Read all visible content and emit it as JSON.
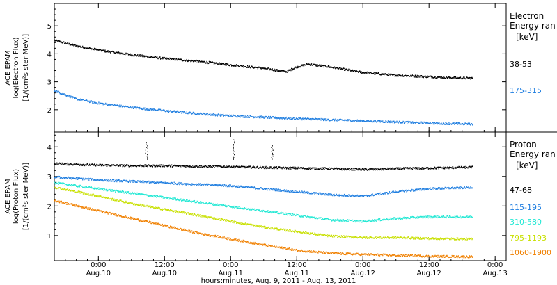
{
  "footer": {
    "xlabel": "hours:minutes, Aug.  9, 2011 - Aug. 13, 2011"
  },
  "colors": {
    "black": "#000000",
    "blue": "#1f7ee0",
    "cyan": "#22e8d4",
    "yellow": "#c8e000",
    "orange": "#f08000"
  },
  "chart_data": [
    {
      "type": "scatter",
      "ylabel": [
        "ACE EPAM",
        "log(Electron Flux)",
        "[1/(cm²s ster MeV)]"
      ],
      "ylim": [
        1.2,
        5.8
      ],
      "yticks": [
        "2",
        "3",
        "4",
        "5"
      ],
      "xlim": [
        "2011-08-09 16:00",
        "2011-08-13 02:00"
      ],
      "xticks": [
        {
          "time": "0:00",
          "date": "Aug.10"
        },
        {
          "time": "12:00",
          "date": "Aug.10"
        },
        {
          "time": "0:00",
          "date": "Aug.11"
        },
        {
          "time": "12:00",
          "date": "Aug.11"
        },
        {
          "time": "0:00",
          "date": "Aug.12"
        },
        {
          "time": "12:00",
          "date": "Aug.12"
        },
        {
          "time": "0:00",
          "date": "Aug.13"
        }
      ],
      "legend_title": [
        "Electron",
        "Energy ran",
        "[keV]"
      ],
      "series": [
        {
          "name": "38-53",
          "color": "black",
          "x": [
            "2011-08-09 16:00",
            "2011-08-09 20:00",
            "2011-08-10 00:00",
            "2011-08-10 06:00",
            "2011-08-10 12:00",
            "2011-08-10 18:00",
            "2011-08-11 00:00",
            "2011-08-11 06:00",
            "2011-08-11 10:00",
            "2011-08-11 12:00",
            "2011-08-11 14:00",
            "2011-08-11 18:00",
            "2011-08-12 00:00",
            "2011-08-12 06:00",
            "2011-08-12 12:00",
            "2011-08-12 18:00",
            "2011-08-12 20:00"
          ],
          "y": [
            4.5,
            4.3,
            4.15,
            3.98,
            3.85,
            3.75,
            3.62,
            3.5,
            3.38,
            3.55,
            3.65,
            3.55,
            3.35,
            3.25,
            3.2,
            3.15,
            3.15
          ]
        },
        {
          "name": "175-315",
          "color": "blue",
          "x": [
            "2011-08-09 16:00",
            "2011-08-09 20:00",
            "2011-08-10 00:00",
            "2011-08-10 06:00",
            "2011-08-10 12:00",
            "2011-08-10 18:00",
            "2011-08-11 00:00",
            "2011-08-11 06:00",
            "2011-08-11 12:00",
            "2011-08-11 18:00",
            "2011-08-12 00:00",
            "2011-08-12 06:00",
            "2011-08-12 12:00",
            "2011-08-12 20:00"
          ],
          "y": [
            2.7,
            2.4,
            2.25,
            2.1,
            1.98,
            1.88,
            1.8,
            1.75,
            1.7,
            1.66,
            1.62,
            1.58,
            1.54,
            1.5
          ]
        }
      ]
    },
    {
      "type": "scatter",
      "ylabel": [
        "ACE EPAM",
        "log(Proton Flux)",
        "[1/(cm²s ster MeV)]"
      ],
      "ylim": [
        0.15,
        4.5
      ],
      "yticks": [
        "1",
        "2",
        "3",
        "4"
      ],
      "xlim": [
        "2011-08-09 16:00",
        "2011-08-13 02:00"
      ],
      "legend_title": [
        "Proton",
        "Energy ran",
        "[keV]"
      ],
      "series": [
        {
          "name": "47-68",
          "color": "black",
          "x": [
            "2011-08-09 16:00",
            "2011-08-10 00:00",
            "2011-08-10 06:00",
            "2011-08-10 12:00",
            "2011-08-10 18:00",
            "2011-08-11 00:00",
            "2011-08-11 06:00",
            "2011-08-11 12:00",
            "2011-08-11 18:00",
            "2011-08-12 00:00",
            "2011-08-12 06:00",
            "2011-08-12 12:00",
            "2011-08-12 20:00"
          ],
          "y": [
            3.45,
            3.4,
            3.38,
            3.38,
            3.36,
            3.35,
            3.32,
            3.3,
            3.28,
            3.25,
            3.28,
            3.3,
            3.33
          ]
        },
        {
          "name": "115-195",
          "color": "blue",
          "x": [
            "2011-08-09 16:00",
            "2011-08-10 00:00",
            "2011-08-10 06:00",
            "2011-08-10 12:00",
            "2011-08-10 18:00",
            "2011-08-11 00:00",
            "2011-08-11 06:00",
            "2011-08-11 12:00",
            "2011-08-11 18:00",
            "2011-08-12 00:00",
            "2011-08-12 06:00",
            "2011-08-12 12:00",
            "2011-08-12 20:00"
          ],
          "y": [
            3.0,
            2.9,
            2.85,
            2.8,
            2.75,
            2.7,
            2.6,
            2.5,
            2.4,
            2.35,
            2.5,
            2.6,
            2.65
          ]
        },
        {
          "name": "310-580",
          "color": "cyan",
          "x": [
            "2011-08-09 16:00",
            "2011-08-10 00:00",
            "2011-08-10 06:00",
            "2011-08-10 12:00",
            "2011-08-10 18:00",
            "2011-08-11 00:00",
            "2011-08-11 06:00",
            "2011-08-11 12:00",
            "2011-08-11 18:00",
            "2011-08-12 00:00",
            "2011-08-12 06:00",
            "2011-08-12 12:00",
            "2011-08-12 20:00"
          ],
          "y": [
            2.8,
            2.6,
            2.45,
            2.3,
            2.15,
            2.0,
            1.85,
            1.7,
            1.55,
            1.5,
            1.6,
            1.65,
            1.65
          ]
        },
        {
          "name": "795-1193",
          "color": "yellow",
          "x": [
            "2011-08-09 16:00",
            "2011-08-10 00:00",
            "2011-08-10 06:00",
            "2011-08-10 12:00",
            "2011-08-10 18:00",
            "2011-08-11 00:00",
            "2011-08-11 06:00",
            "2011-08-11 12:00",
            "2011-08-11 18:00",
            "2011-08-12 00:00",
            "2011-08-12 06:00",
            "2011-08-12 12:00",
            "2011-08-12 20:00"
          ],
          "y": [
            2.65,
            2.35,
            2.1,
            1.9,
            1.7,
            1.5,
            1.3,
            1.15,
            1.0,
            0.95,
            0.95,
            0.92,
            0.9
          ]
        },
        {
          "name": "1060-1900",
          "color": "orange",
          "x": [
            "2011-08-09 16:00",
            "2011-08-10 00:00",
            "2011-08-10 06:00",
            "2011-08-10 12:00",
            "2011-08-10 18:00",
            "2011-08-11 00:00",
            "2011-08-11 06:00",
            "2011-08-11 12:00",
            "2011-08-11 18:00",
            "2011-08-12 00:00",
            "2011-08-12 06:00",
            "2011-08-12 12:00",
            "2011-08-12 20:00"
          ],
          "y": [
            2.2,
            1.85,
            1.6,
            1.35,
            1.1,
            0.9,
            0.7,
            0.52,
            0.42,
            0.38,
            0.35,
            0.32,
            0.3
          ]
        }
      ],
      "spikes": [
        {
          "x": "2011-08-10 08:40",
          "y": [
            3.6,
            4.15
          ]
        },
        {
          "x": "2011-08-11 00:30",
          "y": [
            3.6,
            4.25
          ]
        },
        {
          "x": "2011-08-11 07:30",
          "y": [
            3.6,
            4.05
          ]
        }
      ]
    }
  ]
}
